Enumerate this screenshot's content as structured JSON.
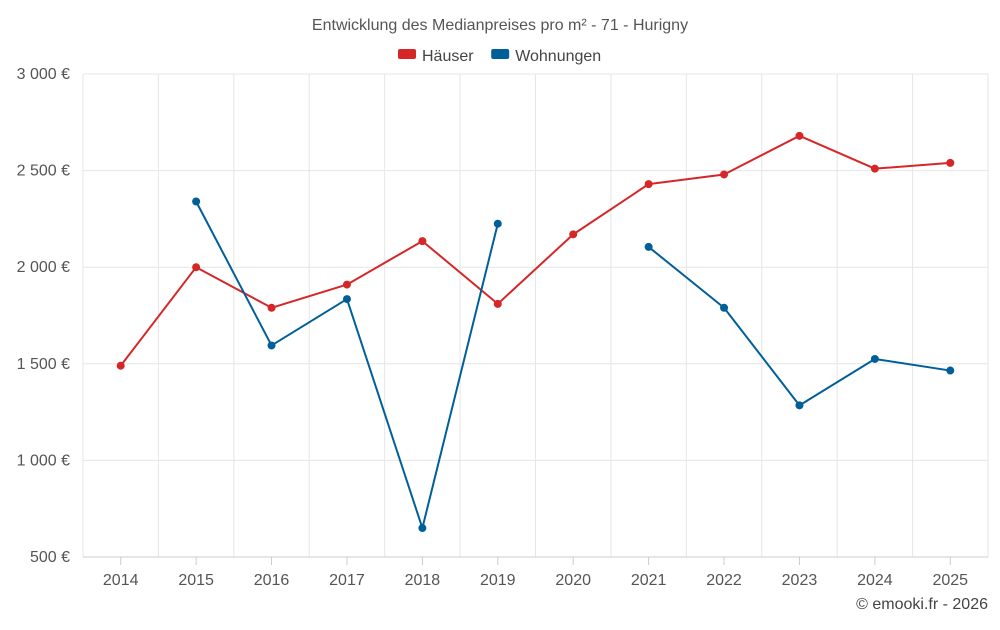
{
  "chart_data": {
    "type": "line",
    "title": "Entwicklung des Medianpreises pro m² - 71 - Hurigny",
    "xlabel": "",
    "ylabel": "",
    "categories": [
      "2014",
      "2015",
      "2016",
      "2017",
      "2018",
      "2019",
      "2020",
      "2021",
      "2022",
      "2023",
      "2024",
      "2025"
    ],
    "ylim": [
      500,
      3000
    ],
    "yticks": [
      500,
      1000,
      1500,
      2000,
      2500,
      3000
    ],
    "ytick_labels": [
      "500 €",
      "1 000 €",
      "1 500 €",
      "2 000 €",
      "2 500 €",
      "3 000 €"
    ],
    "grid": true,
    "legend_position": "top-center",
    "series": [
      {
        "name": "Häuser",
        "color": "#d62728",
        "values": [
          1490,
          2000,
          1790,
          1910,
          2135,
          1810,
          2170,
          2430,
          2480,
          2680,
          2510,
          2540
        ]
      },
      {
        "name": "Wohnungen",
        "color": "#005f99",
        "values": [
          null,
          2340,
          1595,
          1835,
          650,
          2225,
          null,
          2105,
          1790,
          1285,
          1525,
          1465
        ]
      }
    ]
  },
  "credit": "© emooki.fr - 2026"
}
